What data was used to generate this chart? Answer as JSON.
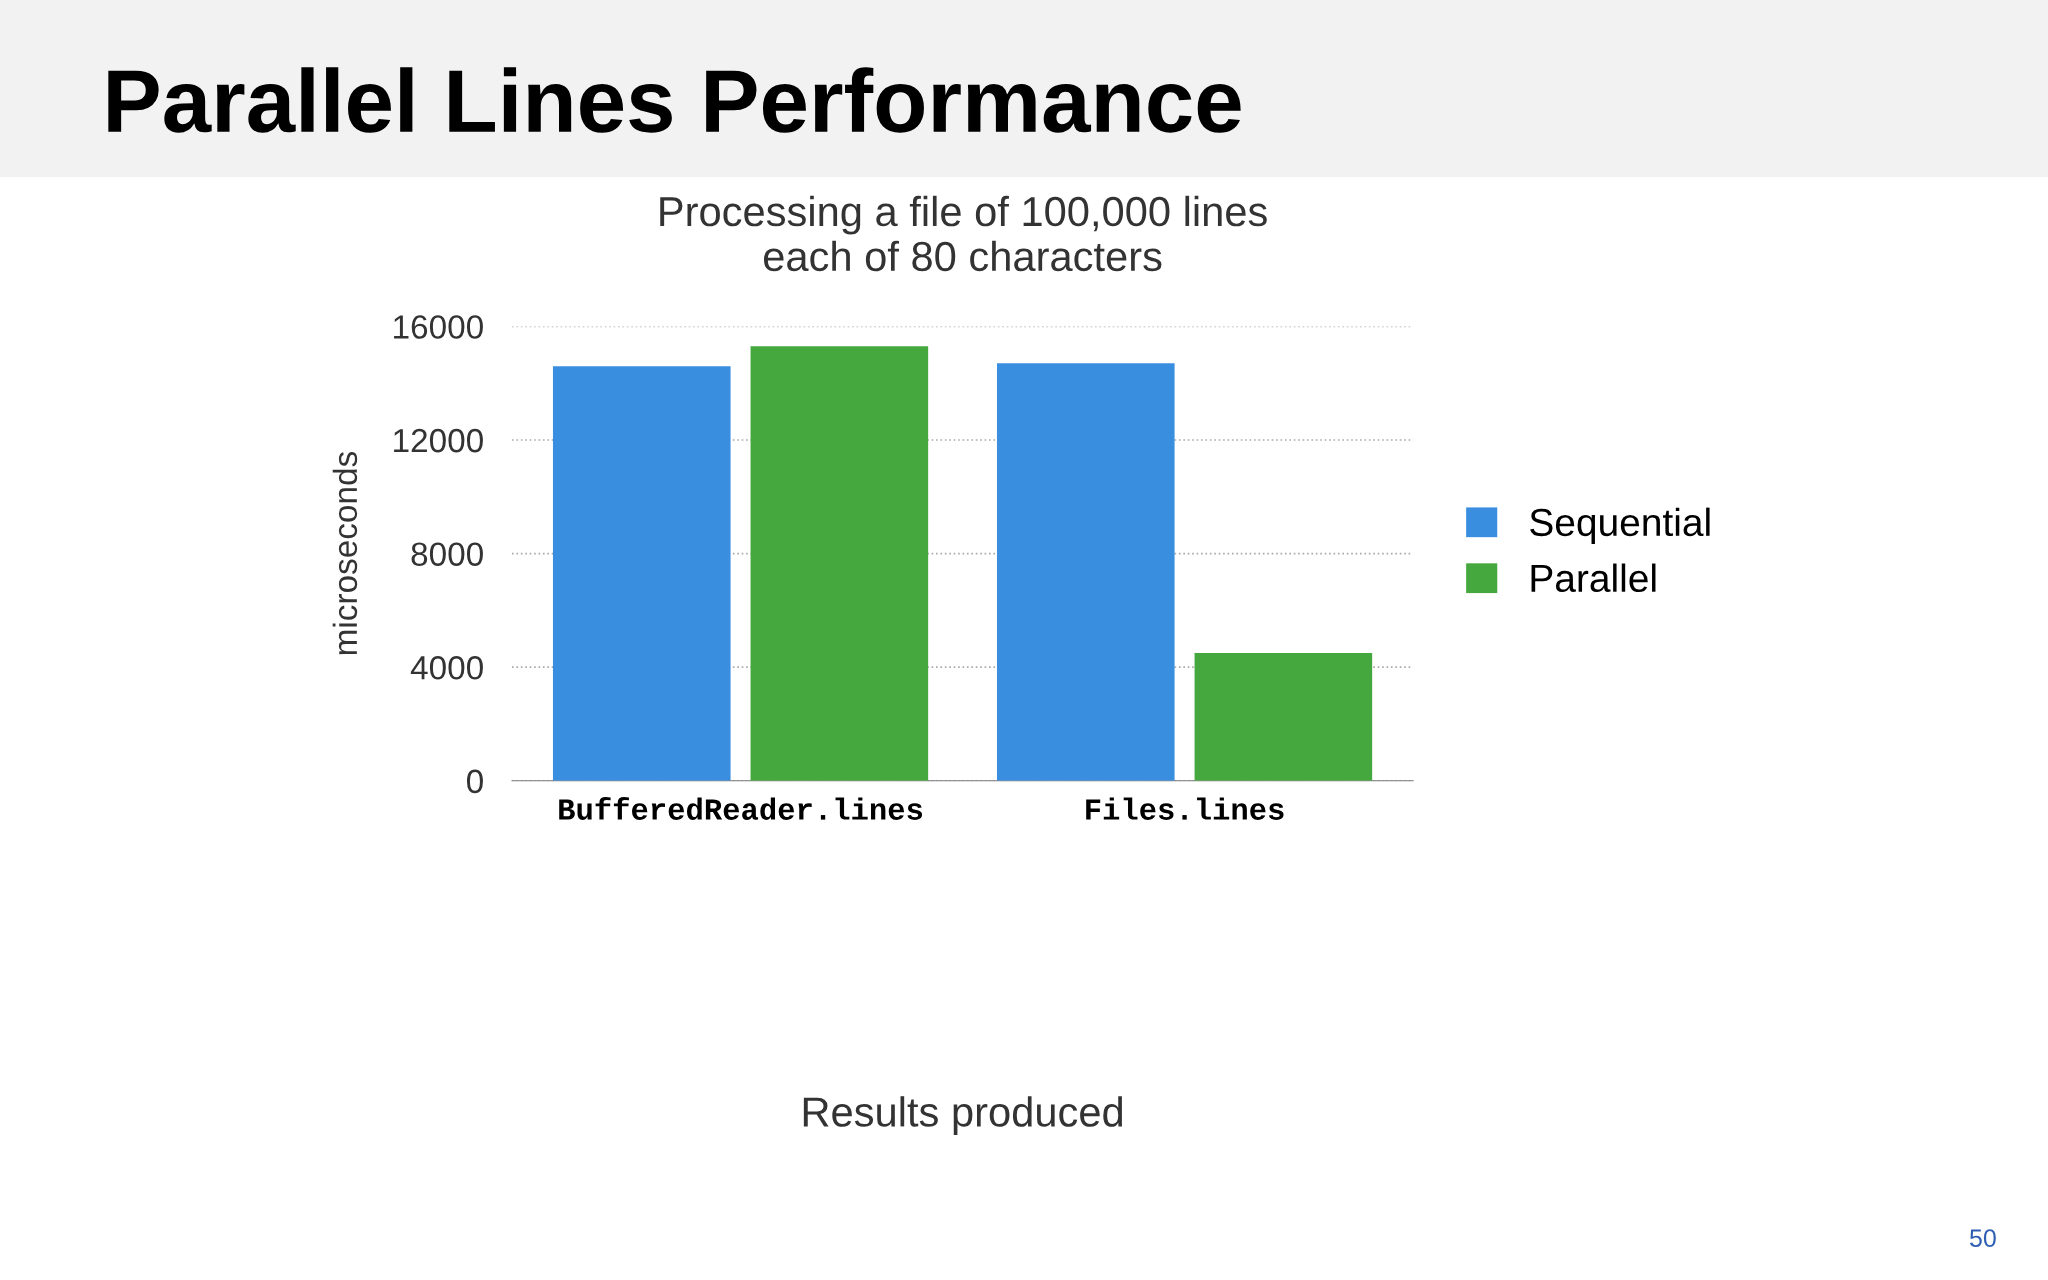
{
  "chart_data": {
    "type": "bar",
    "title": "Parallel Lines Performance",
    "subtitle": "Processing a file of 100,000 lines\neach of 80 characters",
    "ylabel": "microseconds",
    "categories": [
      "BufferedReader.lines",
      "Files.lines"
    ],
    "series": [
      {
        "name": "Sequential",
        "color": "#3a8ee0",
        "values": [
          14600,
          14700
        ]
      },
      {
        "name": "Parallel",
        "color": "#45a83e",
        "values": [
          15300,
          4500
        ]
      }
    ],
    "ylim": [
      0,
      16000
    ],
    "yticks": [
      0,
      4000,
      8000,
      12000,
      16000
    ],
    "grid": "y",
    "legend": "right",
    "annotations": [
      "Results produced",
      "50"
    ]
  }
}
